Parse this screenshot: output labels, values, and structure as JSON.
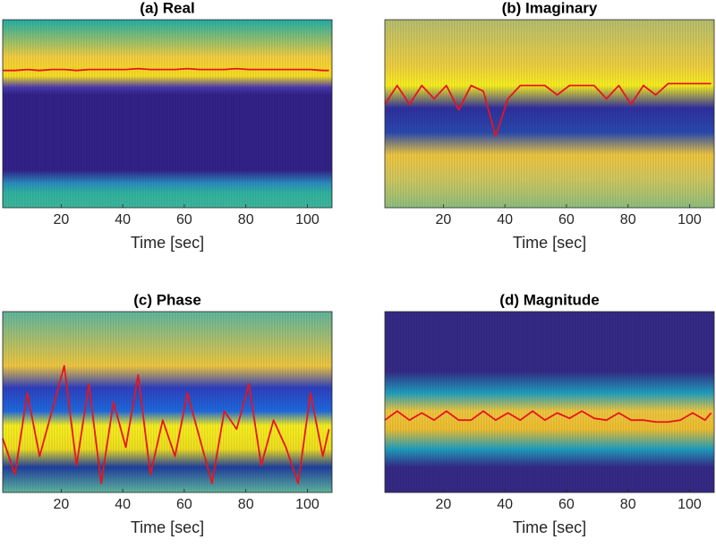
{
  "chart_data": [
    {
      "type": "line",
      "title": "(a) Real",
      "xlabel": "Time [sec]",
      "xlim": [
        1,
        108
      ],
      "xticks": [
        20,
        40,
        60,
        80,
        100
      ],
      "ylim": [
        0,
        1
      ],
      "x": [
        1,
        5,
        9,
        13,
        17,
        21,
        25,
        29,
        33,
        37,
        41,
        45,
        49,
        53,
        57,
        61,
        65,
        69,
        73,
        77,
        81,
        85,
        89,
        93,
        97,
        101,
        105,
        107
      ],
      "series": [
        {
          "color": "#e8141c",
          "values": [
            0.73,
            0.73,
            0.735,
            0.73,
            0.735,
            0.735,
            0.73,
            0.735,
            0.735,
            0.735,
            0.735,
            0.74,
            0.735,
            0.735,
            0.735,
            0.74,
            0.735,
            0.735,
            0.735,
            0.74,
            0.735,
            0.735,
            0.735,
            0.735,
            0.735,
            0.735,
            0.73,
            0.73
          ]
        }
      ]
    },
    {
      "type": "line",
      "title": "(b) Imaginary",
      "xlabel": "Time [sec]",
      "xlim": [
        1,
        108
      ],
      "xticks": [
        20,
        40,
        60,
        80,
        100
      ],
      "ylim": [
        0,
        1
      ],
      "x": [
        1,
        5,
        9,
        13,
        17,
        21,
        25,
        29,
        33,
        37,
        41,
        45,
        49,
        53,
        57,
        61,
        65,
        69,
        73,
        77,
        81,
        85,
        89,
        93,
        97,
        101,
        105,
        107
      ],
      "series": [
        {
          "color": "#e8141c",
          "values": [
            0.55,
            0.65,
            0.55,
            0.65,
            0.58,
            0.65,
            0.52,
            0.65,
            0.62,
            0.38,
            0.58,
            0.65,
            0.65,
            0.65,
            0.6,
            0.65,
            0.65,
            0.65,
            0.58,
            0.65,
            0.55,
            0.65,
            0.6,
            0.66,
            0.66,
            0.66,
            0.66,
            0.66
          ]
        }
      ]
    },
    {
      "type": "line",
      "title": "(c) Phase",
      "xlabel": "Time [sec]",
      "xlim": [
        1,
        108
      ],
      "xticks": [
        20,
        40,
        60,
        80,
        100
      ],
      "ylim": [
        0,
        1
      ],
      "x": [
        1,
        5,
        9,
        13,
        17,
        21,
        25,
        29,
        33,
        37,
        41,
        45,
        49,
        53,
        57,
        61,
        65,
        69,
        73,
        77,
        81,
        85,
        89,
        93,
        97,
        101,
        105,
        107
      ],
      "series": [
        {
          "color": "#e8141c",
          "values": [
            0.3,
            0.1,
            0.55,
            0.2,
            0.45,
            0.7,
            0.15,
            0.6,
            0.05,
            0.5,
            0.25,
            0.65,
            0.1,
            0.4,
            0.2,
            0.55,
            0.3,
            0.05,
            0.45,
            0.35,
            0.6,
            0.15,
            0.4,
            0.25,
            0.05,
            0.55,
            0.2,
            0.35
          ]
        }
      ]
    },
    {
      "type": "line",
      "title": "(d) Magnitude",
      "xlabel": "Time [sec]",
      "xlim": [
        1,
        108
      ],
      "xticks": [
        20,
        40,
        60,
        80,
        100
      ],
      "ylim": [
        0,
        1
      ],
      "x": [
        1,
        5,
        9,
        13,
        17,
        21,
        25,
        29,
        33,
        37,
        41,
        45,
        49,
        53,
        57,
        61,
        65,
        69,
        73,
        77,
        81,
        85,
        89,
        93,
        97,
        101,
        105,
        107
      ],
      "series": [
        {
          "color": "#e8141c",
          "values": [
            0.4,
            0.45,
            0.4,
            0.44,
            0.4,
            0.45,
            0.4,
            0.4,
            0.45,
            0.4,
            0.44,
            0.4,
            0.45,
            0.4,
            0.44,
            0.41,
            0.45,
            0.41,
            0.4,
            0.44,
            0.4,
            0.4,
            0.39,
            0.39,
            0.4,
            0.44,
            0.4,
            0.44
          ]
        }
      ]
    }
  ]
}
